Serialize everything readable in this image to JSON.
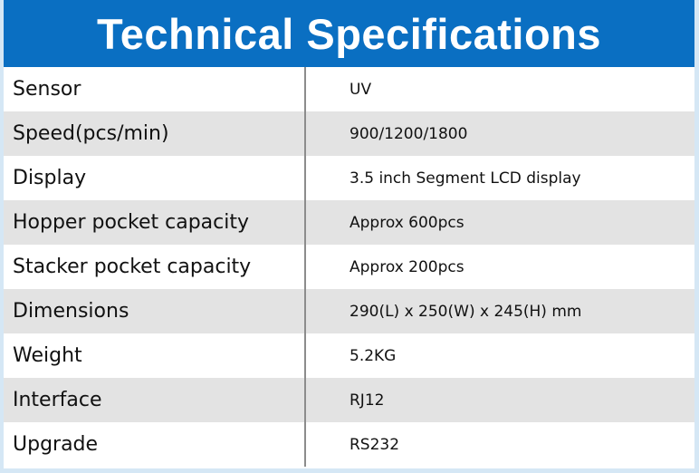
{
  "header": {
    "title": "Technical Specifications"
  },
  "table": {
    "rows": [
      [
        "Sensor",
        "UV"
      ],
      [
        "Speed(pcs/min)",
        "900/1200/1800"
      ],
      [
        "Display",
        "3.5 inch Segment LCD display"
      ],
      [
        "Hopper pocket capacity",
        "Approx 600pcs"
      ],
      [
        "Stacker pocket capacity",
        "Approx 200pcs"
      ],
      [
        "Dimensions",
        "290(L) x 250(W) x 245(H) mm"
      ],
      [
        "Weight",
        "5.2KG"
      ],
      [
        "Interface",
        "RJ12"
      ],
      [
        "Upgrade",
        "RS232"
      ]
    ]
  }
}
